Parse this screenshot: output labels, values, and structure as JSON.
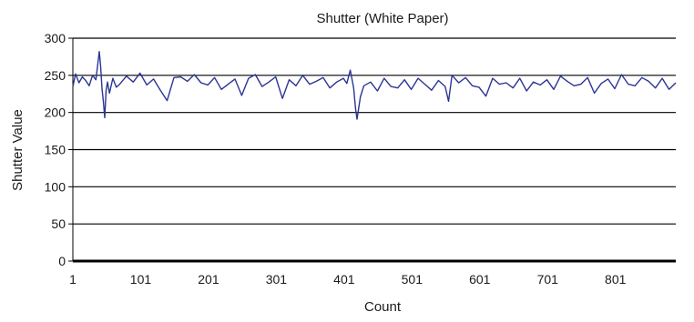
{
  "chart_data": {
    "type": "line",
    "title": "Shutter (White Paper)",
    "xlabel": "Count",
    "ylabel": "Shutter Value",
    "xlim": [
      1,
      890
    ],
    "ylim": [
      0,
      300
    ],
    "x_ticks": [
      1,
      101,
      201,
      301,
      401,
      501,
      601,
      701,
      801
    ],
    "y_ticks": [
      0,
      50,
      100,
      150,
      200,
      250,
      300
    ],
    "grid": "horizontal",
    "legend": "none",
    "series": [
      {
        "color": "#2b3593",
        "x": [
          1,
          5,
          10,
          15,
          20,
          25,
          30,
          35,
          40,
          42,
          44,
          46,
          48,
          50,
          52,
          55,
          60,
          65,
          70,
          80,
          90,
          100,
          110,
          120,
          130,
          140,
          150,
          160,
          170,
          180,
          190,
          200,
          210,
          220,
          230,
          240,
          250,
          260,
          270,
          280,
          290,
          300,
          310,
          320,
          330,
          340,
          350,
          360,
          370,
          380,
          390,
          400,
          405,
          410,
          415,
          418,
          420,
          425,
          430,
          440,
          450,
          460,
          470,
          480,
          490,
          500,
          510,
          520,
          530,
          540,
          550,
          555,
          560,
          570,
          580,
          590,
          600,
          610,
          620,
          630,
          640,
          650,
          660,
          670,
          680,
          690,
          700,
          710,
          720,
          730,
          740,
          750,
          760,
          770,
          780,
          790,
          800,
          810,
          820,
          830,
          840,
          850,
          860,
          870,
          880,
          890
        ],
        "values": [
          235,
          252,
          240,
          248,
          243,
          236,
          250,
          244,
          282,
          262,
          232,
          215,
          193,
          230,
          241,
          226,
          246,
          234,
          238,
          249,
          241,
          253,
          237,
          245,
          230,
          216,
          247,
          248,
          242,
          251,
          240,
          237,
          247,
          231,
          238,
          245,
          223,
          246,
          251,
          235,
          241,
          248,
          219,
          244,
          236,
          250,
          238,
          242,
          247,
          233,
          241,
          246,
          239,
          257,
          233,
          204,
          191,
          221,
          236,
          241,
          229,
          246,
          235,
          233,
          244,
          231,
          246,
          238,
          230,
          243,
          235,
          215,
          250,
          240,
          247,
          236,
          234,
          222,
          246,
          238,
          240,
          233,
          246,
          229,
          241,
          237,
          244,
          231,
          249,
          242,
          236,
          238,
          247,
          226,
          239,
          245,
          232,
          251,
          238,
          236,
          247,
          242,
          233,
          246,
          231,
          240
        ]
      }
    ]
  }
}
